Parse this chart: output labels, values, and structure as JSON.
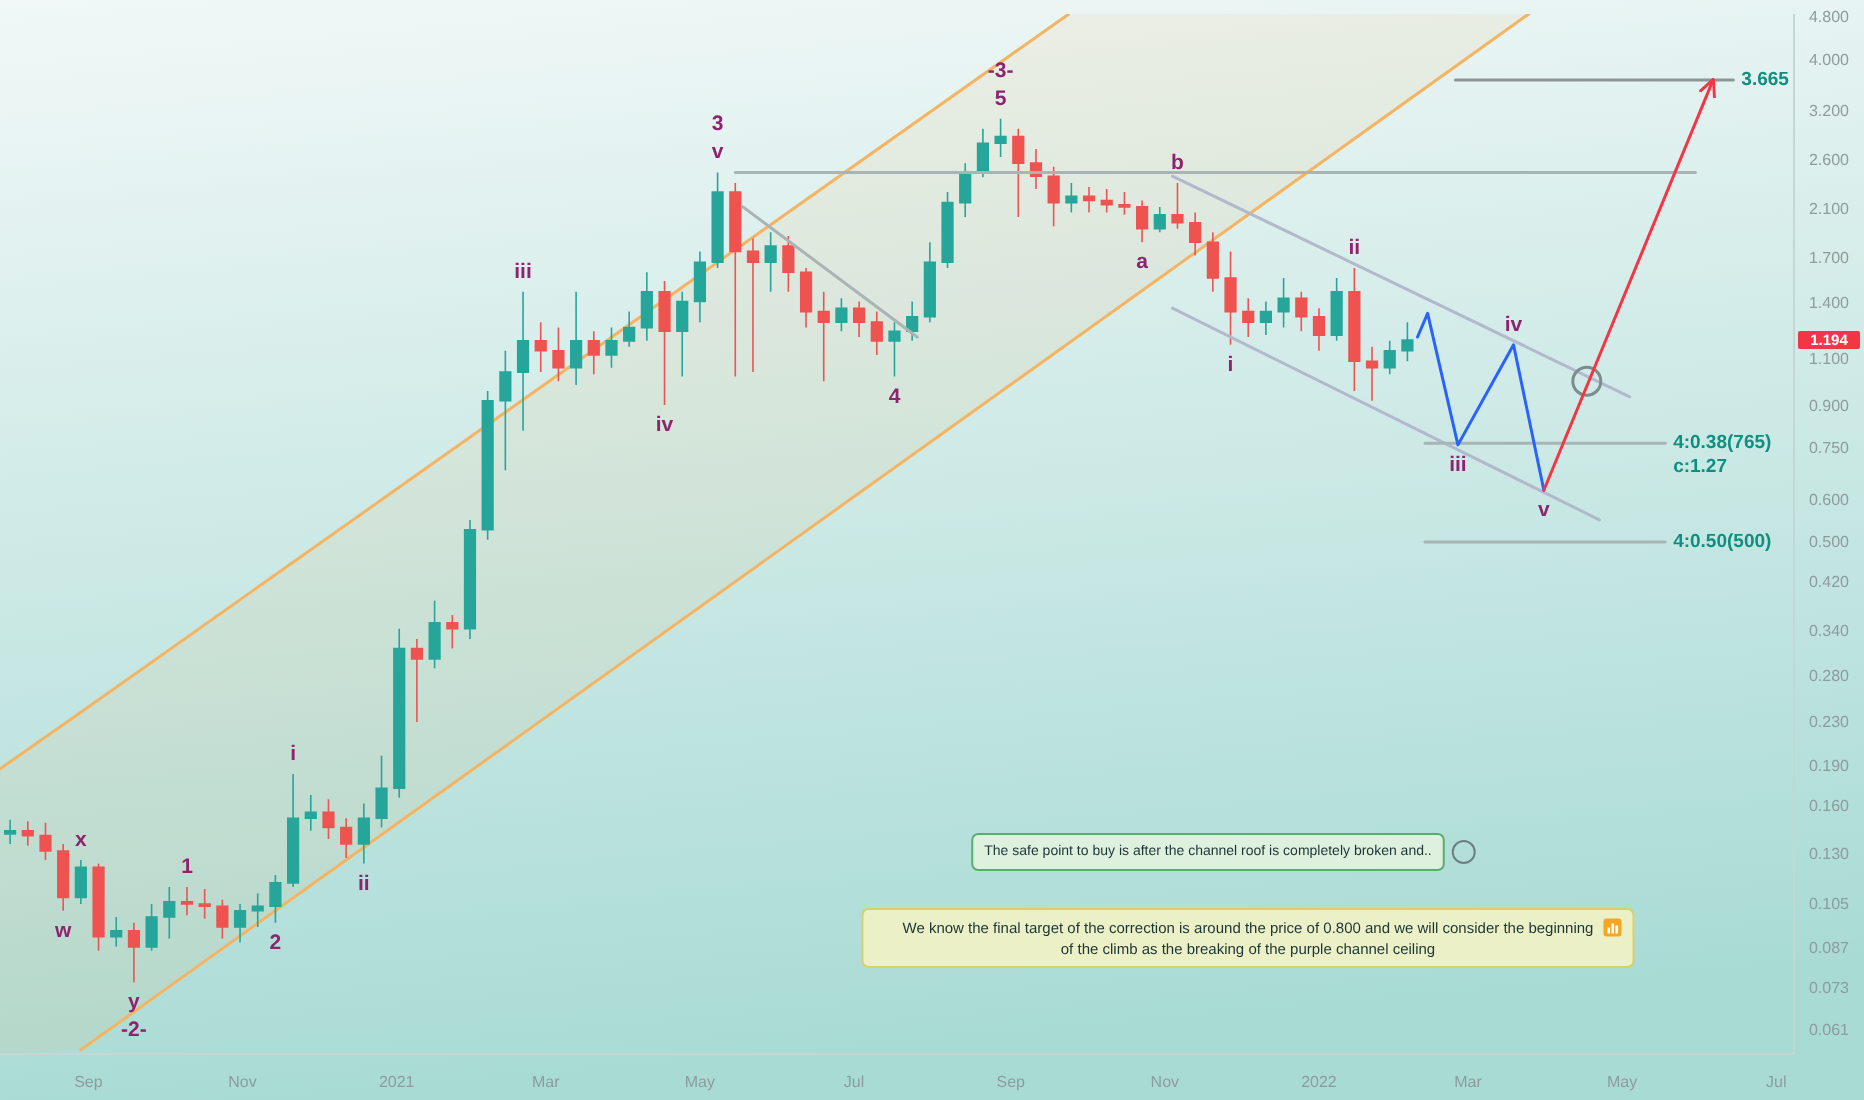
{
  "chart_data": {
    "type": "candlestick",
    "log": true,
    "xlim": [
      "2020-07-28",
      "2022-07-08"
    ],
    "ylim": [
      0.055,
      4.87
    ],
    "xticks": [
      {
        "value": "2020-09-01",
        "label": "Sep"
      },
      {
        "value": "2020-11-01",
        "label": "Nov"
      },
      {
        "value": "2021-01-01",
        "label": "2021"
      },
      {
        "value": "2021-03-01",
        "label": "Mar"
      },
      {
        "value": "2021-05-01",
        "label": "May"
      },
      {
        "value": "2021-07-01",
        "label": "Jul"
      },
      {
        "value": "2021-09-01",
        "label": "Sep"
      },
      {
        "value": "2021-11-01",
        "label": "Nov"
      },
      {
        "value": "2022-01-01",
        "label": "2022"
      },
      {
        "value": "2022-03-01",
        "label": "Mar"
      },
      {
        "value": "2022-05-01",
        "label": "May"
      },
      {
        "value": "2022-07-01",
        "label": "Jul"
      }
    ],
    "yticks": [
      {
        "value": 4.8,
        "label": "4.800"
      },
      {
        "value": 4,
        "label": "4.000"
      },
      {
        "value": 3.2,
        "label": "3.200"
      },
      {
        "value": 2.6,
        "label": "2.600"
      },
      {
        "value": 2.1,
        "label": "2.100"
      },
      {
        "value": 1.7,
        "label": "1.700"
      },
      {
        "value": 1.4,
        "label": "1.400"
      },
      {
        "value": 1.1,
        "label": "1.100"
      },
      {
        "value": 0.9,
        "label": "0.900"
      },
      {
        "value": 0.75,
        "label": "0.750"
      },
      {
        "value": 0.6,
        "label": "0.600"
      },
      {
        "value": 0.5,
        "label": "0.500"
      },
      {
        "value": 0.42,
        "label": "0.420"
      },
      {
        "value": 0.34,
        "label": "0.340"
      },
      {
        "value": 0.28,
        "label": "0.280"
      },
      {
        "value": 0.23,
        "label": "0.230"
      },
      {
        "value": 0.19,
        "label": "0.190"
      },
      {
        "value": 0.16,
        "label": "0.160"
      },
      {
        "value": 0.13,
        "label": "0.130"
      },
      {
        "value": 0.105,
        "label": "0.105"
      },
      {
        "value": 0.087,
        "label": "0.087"
      },
      {
        "value": 0.073,
        "label": "0.073"
      },
      {
        "value": 0.061,
        "label": "0.061"
      }
    ],
    "x": [
      "2020-08-01",
      "2020-08-08",
      "2020-08-15",
      "2020-08-22",
      "2020-08-29",
      "2020-09-05",
      "2020-09-12",
      "2020-09-19",
      "2020-09-26",
      "2020-10-03",
      "2020-10-10",
      "2020-10-17",
      "2020-10-24",
      "2020-10-31",
      "2020-11-07",
      "2020-11-14",
      "2020-11-21",
      "2020-11-28",
      "2020-12-05",
      "2020-12-12",
      "2020-12-19",
      "2020-12-26",
      "2021-01-02",
      "2021-01-09",
      "2021-01-16",
      "2021-01-23",
      "2021-01-30",
      "2021-02-06",
      "2021-02-13",
      "2021-02-20",
      "2021-02-27",
      "2021-03-06",
      "2021-03-13",
      "2021-03-20",
      "2021-03-27",
      "2021-04-03",
      "2021-04-10",
      "2021-04-17",
      "2021-04-24",
      "2021-05-01",
      "2021-05-08",
      "2021-05-15",
      "2021-05-22",
      "2021-05-29",
      "2021-06-05",
      "2021-06-12",
      "2021-06-19",
      "2021-06-26",
      "2021-07-03",
      "2021-07-10",
      "2021-07-17",
      "2021-07-24",
      "2021-07-31",
      "2021-08-07",
      "2021-08-14",
      "2021-08-21",
      "2021-08-28",
      "2021-09-04",
      "2021-09-11",
      "2021-09-18",
      "2021-09-25",
      "2021-10-02",
      "2021-10-09",
      "2021-10-16",
      "2021-10-23",
      "2021-10-30",
      "2021-11-06",
      "2021-11-13",
      "2021-11-20",
      "2021-11-27",
      "2021-12-04",
      "2021-12-11",
      "2021-12-18",
      "2021-12-25",
      "2022-01-01",
      "2022-01-08",
      "2022-01-15",
      "2022-01-22",
      "2022-01-29",
      "2022-02-05"
    ],
    "ohlc": [
      [
        0.142,
        0.151,
        0.136,
        0.144
      ],
      [
        0.144,
        0.15,
        0.135,
        0.141
      ],
      [
        0.141,
        0.149,
        0.127,
        0.132
      ],
      [
        0.132,
        0.136,
        0.102,
        0.108
      ],
      [
        0.108,
        0.127,
        0.105,
        0.123
      ],
      [
        0.123,
        0.125,
        0.0858,
        0.0912
      ],
      [
        0.0912,
        0.0993,
        0.0873,
        0.0935
      ],
      [
        0.0935,
        0.0968,
        0.0749,
        0.0873
      ],
      [
        0.0873,
        0.105,
        0.0858,
        0.0993
      ],
      [
        0.0993,
        0.113,
        0.0904,
        0.106
      ],
      [
        0.106,
        0.113,
        0.1,
        0.105
      ],
      [
        0.105,
        0.112,
        0.0985,
        0.104
      ],
      [
        0.104,
        0.107,
        0.0904,
        0.0951
      ],
      [
        0.0951,
        0.105,
        0.0889,
        0.102
      ],
      [
        0.102,
        0.11,
        0.0951,
        0.104
      ],
      [
        0.104,
        0.119,
        0.0968,
        0.115
      ],
      [
        0.115,
        0.184,
        0.113,
        0.152
      ],
      [
        0.152,
        0.168,
        0.144,
        0.156
      ],
      [
        0.156,
        0.165,
        0.139,
        0.146
      ],
      [
        0.146,
        0.152,
        0.128,
        0.136
      ],
      [
        0.136,
        0.162,
        0.125,
        0.152
      ],
      [
        0.152,
        0.199,
        0.146,
        0.173
      ],
      [
        0.173,
        0.344,
        0.166,
        0.316
      ],
      [
        0.316,
        0.329,
        0.23,
        0.302
      ],
      [
        0.302,
        0.388,
        0.29,
        0.353
      ],
      [
        0.353,
        0.365,
        0.316,
        0.344
      ],
      [
        0.344,
        0.55,
        0.329,
        0.527
      ],
      [
        0.527,
        0.959,
        0.505,
        0.919
      ],
      [
        0.919,
        1.14,
        0.681,
        1.04
      ],
      [
        1.04,
        1.47,
        0.808,
        1.19
      ],
      [
        1.19,
        1.29,
        1.04,
        1.14
      ],
      [
        1.14,
        1.26,
        1.0,
        1.06
      ],
      [
        1.06,
        1.47,
        0.984,
        1.19
      ],
      [
        1.19,
        1.24,
        1.03,
        1.12
      ],
      [
        1.12,
        1.26,
        1.06,
        1.19
      ],
      [
        1.19,
        1.35,
        1.16,
        1.26
      ],
      [
        1.26,
        1.6,
        1.19,
        1.47
      ],
      [
        1.47,
        1.54,
        0.903,
        1.24
      ],
      [
        1.24,
        1.47,
        1.02,
        1.41
      ],
      [
        1.41,
        1.75,
        1.29,
        1.67
      ],
      [
        1.67,
        2.46,
        1.63,
        2.26
      ],
      [
        2.26,
        2.35,
        1.02,
        1.75
      ],
      [
        1.75,
        1.85,
        1.04,
        1.67
      ],
      [
        1.67,
        1.9,
        1.47,
        1.79
      ],
      [
        1.79,
        1.87,
        1.47,
        1.6
      ],
      [
        1.6,
        1.63,
        1.26,
        1.35
      ],
      [
        1.35,
        1.47,
        1.0,
        1.29
      ],
      [
        1.29,
        1.43,
        1.24,
        1.37
      ],
      [
        1.37,
        1.41,
        1.21,
        1.29
      ],
      [
        1.29,
        1.35,
        1.12,
        1.19
      ],
      [
        1.19,
        1.29,
        1.02,
        1.24
      ],
      [
        1.24,
        1.41,
        1.19,
        1.32
      ],
      [
        1.32,
        1.82,
        1.29,
        1.67
      ],
      [
        1.67,
        2.26,
        1.63,
        2.16
      ],
      [
        2.16,
        2.56,
        2.03,
        2.46
      ],
      [
        2.46,
        2.97,
        2.41,
        2.79
      ],
      [
        2.79,
        3.1,
        2.63,
        2.87
      ],
      [
        2.87,
        2.97,
        2.03,
        2.56
      ],
      [
        2.56,
        2.72,
        2.29,
        2.42
      ],
      [
        2.42,
        2.52,
        1.95,
        2.16
      ],
      [
        2.16,
        2.35,
        2.07,
        2.22
      ],
      [
        2.22,
        2.31,
        2.07,
        2.18
      ],
      [
        2.18,
        2.29,
        2.07,
        2.14
      ],
      [
        2.14,
        2.26,
        2.05,
        2.12
      ],
      [
        2.12,
        2.18,
        1.82,
        1.93
      ],
      [
        1.93,
        2.12,
        1.9,
        2.05
      ],
      [
        2.05,
        2.35,
        1.93,
        1.98
      ],
      [
        1.98,
        2.07,
        1.72,
        1.82
      ],
      [
        1.82,
        1.9,
        1.47,
        1.56
      ],
      [
        1.56,
        1.75,
        1.17,
        1.35
      ],
      [
        1.35,
        1.43,
        1.21,
        1.29
      ],
      [
        1.29,
        1.41,
        1.22,
        1.35
      ],
      [
        1.35,
        1.56,
        1.26,
        1.43
      ],
      [
        1.43,
        1.47,
        1.24,
        1.32
      ],
      [
        1.32,
        1.37,
        1.14,
        1.22
      ],
      [
        1.22,
        1.56,
        1.19,
        1.47
      ],
      [
        1.47,
        1.63,
        0.959,
        1.09
      ],
      [
        1.09,
        1.16,
        0.919,
        1.06
      ],
      [
        1.06,
        1.19,
        1.03,
        1.14
      ],
      [
        1.14,
        1.29,
        1.09,
        1.194
      ]
    ],
    "colors": [
      "#26a69a",
      "#ef5350",
      "#ef5350",
      "#ef5350",
      "#26a69a",
      "#ef5350",
      "#26a69a",
      "#ef5350",
      "#26a69a",
      "#26a69a",
      "#ef5350",
      "#ef5350",
      "#ef5350",
      "#26a69a",
      "#26a69a",
      "#26a69a",
      "#26a69a",
      "#26a69a",
      "#ef5350",
      "#ef5350",
      "#26a69a",
      "#26a69a",
      "#26a69a",
      "#ef5350",
      "#26a69a",
      "#ef5350",
      "#26a69a",
      "#26a69a",
      "#26a69a",
      "#26a69a",
      "#ef5350",
      "#ef5350",
      "#26a69a",
      "#ef5350",
      "#26a69a",
      "#26a69a",
      "#26a69a",
      "#ef5350",
      "#26a69a",
      "#26a69a",
      "#26a69a",
      "#ef5350",
      "#ef5350",
      "#26a69a",
      "#ef5350",
      "#ef5350",
      "#ef5350",
      "#26a69a",
      "#ef5350",
      "#ef5350",
      "#26a69a",
      "#26a69a",
      "#26a69a",
      "#26a69a",
      "#26a69a",
      "#26a69a",
      "#26a69a",
      "#ef5350",
      "#ef5350",
      "#ef5350",
      "#26a69a",
      "#ef5350",
      "#ef5350",
      "#ef5350",
      "#ef5350",
      "#26a69a",
      "#ef5350",
      "#ef5350",
      "#ef5350",
      "#ef5350",
      "#ef5350",
      "#26a69a",
      "#26a69a",
      "#ef5350",
      "#ef5350",
      "#26a69a",
      "#ef5350",
      "#ef5350",
      "#26a69a",
      "#26a69a"
    ],
    "series": [
      {
        "type": "line",
        "color": "#f5b461",
        "x": [
          "2020-07-28",
          "2020-08-29",
          "2021-09-24",
          "2022-03-25"
        ],
        "values": [
          0.188,
          0.24,
          4.87,
          null
        ],
        "lower": [
          0.055,
          0.056,
          1.18,
          4.87
        ],
        "upper": [
          0.188,
          0.24,
          4.87,
          4.87
        ]
      },
      {
        "type": "line",
        "color": "#f5b461",
        "x": [
          "2020-08-29",
          "2022-03-25"
        ],
        "values": [
          0.056,
          4.87
        ]
      },
      {
        "type": "line",
        "color": "#a9b4b4",
        "x": [
          "2021-05-15",
          "2022-05-30"
        ],
        "values": [
          2.46,
          2.46
        ]
      },
      {
        "type": "line",
        "color": "#a9b4b4",
        "x": [
          "2021-05-18",
          "2021-07-26"
        ],
        "values": [
          2.12,
          1.21
        ]
      },
      {
        "type": "line",
        "color": "#b3b9cc",
        "x": [
          "2021-11-04",
          "2022-05-04"
        ],
        "values": [
          2.42,
          0.935
        ]
      },
      {
        "type": "line",
        "color": "#b3b9cc",
        "x": [
          "2021-11-04",
          "2022-04-22"
        ],
        "values": [
          1.37,
          0.55
        ]
      },
      {
        "type": "line",
        "color": "#8c9696",
        "x": [
          "2022-02-24",
          "2022-06-14"
        ],
        "values": [
          3.665,
          3.665
        ]
      },
      {
        "type": "line",
        "color": "#a9b4b4",
        "x": [
          "2022-02-12",
          "2022-05-18"
        ],
        "values": [
          0.765,
          0.765
        ]
      },
      {
        "type": "line",
        "color": "#a9b4b4",
        "x": [
          "2022-02-12",
          "2022-05-18"
        ],
        "values": [
          0.5,
          0.5
        ]
      },
      {
        "type": "line",
        "color": "#2962ff",
        "x": [
          "2022-02-09",
          "2022-02-13",
          "2022-02-25",
          "2022-03-19",
          "2022-03-31"
        ],
        "values": [
          1.21,
          1.34,
          0.76,
          1.17,
          0.625
        ]
      },
      {
        "type": "scatter",
        "marker": "circle",
        "color": "#7d8c8c",
        "x": [
          "2022-04-17"
        ],
        "values": [
          1.0
        ]
      },
      {
        "type": "line",
        "color": "#f23645",
        "x": [
          "2022-03-31",
          "2022-06-06"
        ],
        "values": [
          0.625,
          3.665
        ]
      }
    ],
    "annotations": [
      {
        "text": "w",
        "x": "2020-08-22",
        "y": 0.102
      },
      {
        "text": "x",
        "x": "2020-08-29",
        "y": 0.127
      },
      {
        "text": "y",
        "x": "2020-09-19",
        "y": 0.0749
      },
      {
        "text": "-2-",
        "x": "2020-09-19",
        "y": 0.0749
      },
      {
        "text": "1",
        "x": "2020-10-10",
        "y": 0.113
      },
      {
        "text": "2",
        "x": "2020-11-14",
        "y": 0.0968
      },
      {
        "text": "i",
        "x": "2020-11-21",
        "y": 0.184
      },
      {
        "text": "ii",
        "x": "2020-12-19",
        "y": 0.125
      },
      {
        "text": "iii",
        "x": "2021-02-20",
        "y": 1.47
      },
      {
        "text": "iv",
        "x": "2021-04-17",
        "y": 0.903
      },
      {
        "text": "v",
        "x": "2021-05-08",
        "y": 2.46
      },
      {
        "text": "3",
        "x": "2021-05-08",
        "y": 2.46
      },
      {
        "text": "4",
        "x": "2021-07-17",
        "y": 1.02
      },
      {
        "text": "5",
        "x": "2021-08-28",
        "y": 3.1
      },
      {
        "text": "-3-",
        "x": "2021-08-28",
        "y": 3.1
      },
      {
        "text": "a",
        "x": "2021-10-23",
        "y": 1.82
      },
      {
        "text": "b",
        "x": "2021-11-06",
        "y": 2.35
      },
      {
        "text": "i",
        "x": "2021-11-27",
        "y": 1.17
      },
      {
        "text": "ii",
        "x": "2022-01-15",
        "y": 1.63
      },
      {
        "text": "iii",
        "x": "2022-02-25",
        "y": 0.76
      },
      {
        "text": "iv",
        "x": "2022-03-19",
        "y": 1.17
      },
      {
        "text": "v",
        "x": "2022-03-31",
        "y": 0.625
      },
      {
        "text": "3.665",
        "x": "2022-06-14",
        "y": 3.665
      },
      {
        "text": "4:0.38(765)",
        "x": "2022-05-18",
        "y": 0.765
      },
      {
        "text": "c:1.27",
        "x": "2022-05-18",
        "y": 0.765
      },
      {
        "text": "4:0.50(500)",
        "x": "2022-05-18",
        "y": 0.5
      },
      "1.194",
      "The safe point to buy is after the channel roof is completely broken and..",
      "We know the final target of the correction is around the price of 0.800 and we will consider the beginning of the climb as the breaking of the purple channel ceiling"
    ]
  }
}
